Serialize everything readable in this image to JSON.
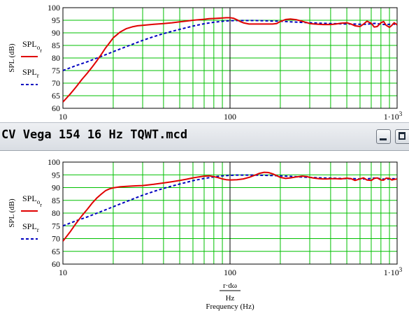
{
  "window": {
    "title": "CV Vega 154 16 Hz TQWT.mcd"
  },
  "colors": {
    "grid": "#00c000",
    "axes": "#000000",
    "series_solid": "#e00000",
    "series_dashed": "#0000c0"
  },
  "x_axis_label": {
    "numerator": "r·dω",
    "denominator": "Hz",
    "caption": "Frequency (Hz)"
  },
  "chart_data": [
    {
      "type": "line",
      "x_scale": "log",
      "xlim": [
        10,
        1000
      ],
      "ylim": [
        60,
        100
      ],
      "grid": true,
      "ylabel": "SPL (dB)",
      "x_ticks": [
        {
          "value": 10,
          "label": "10"
        },
        {
          "value": 100,
          "label": "100"
        },
        {
          "value": 1000,
          "label": "1·10",
          "exponent": "3"
        }
      ],
      "y_ticks": [
        "60",
        "65",
        "70",
        "75",
        "80",
        "85",
        "90",
        "95",
        "100"
      ],
      "legend": [
        {
          "base": "SPL",
          "sub": "o",
          "subsub": "r",
          "style": "solid"
        },
        {
          "base": "SPL",
          "sub": "r",
          "subsub": "",
          "style": "dashed"
        }
      ],
      "series": [
        {
          "style": "solid",
          "x": [
            10,
            11,
            12,
            13,
            14,
            15,
            16,
            17,
            18,
            19,
            20,
            22,
            24,
            26,
            28,
            30,
            35,
            40,
            45,
            50,
            55,
            60,
            65,
            70,
            75,
            80,
            85,
            90,
            95,
            100,
            105,
            110,
            115,
            120,
            130,
            140,
            150,
            160,
            170,
            180,
            190,
            200,
            215,
            230,
            250,
            270,
            290,
            300,
            320,
            340,
            360,
            380,
            400,
            430,
            460,
            500,
            530,
            560,
            600,
            630,
            660,
            700,
            730,
            760,
            800,
            830,
            860,
            900,
            930,
            960,
            1000
          ],
          "y": [
            62.5,
            65.5,
            68.5,
            71.5,
            74,
            76.5,
            79,
            81.5,
            84,
            86,
            88,
            90.3,
            91.7,
            92.4,
            92.8,
            93,
            93.4,
            93.7,
            94,
            94.4,
            94.7,
            95,
            95.2,
            95.4,
            95.6,
            95.7,
            95.8,
            95.9,
            96,
            96,
            95.8,
            95.2,
            94.5,
            94,
            93.5,
            93.5,
            93.5,
            93.5,
            93.5,
            93.5,
            93.7,
            94.5,
            95.3,
            95.5,
            95.2,
            94.6,
            94,
            93.7,
            93.5,
            93.4,
            93.3,
            93.3,
            93.3,
            93.5,
            93.8,
            94,
            93.5,
            92.8,
            92.5,
            93.5,
            94.6,
            93.8,
            92.3,
            92.5,
            94,
            94.5,
            93,
            92.2,
            93,
            94,
            93.2
          ]
        },
        {
          "style": "dashed",
          "x": [
            10,
            12,
            14,
            16,
            18,
            20,
            25,
            30,
            35,
            40,
            45,
            50,
            60,
            70,
            80,
            90,
            100,
            110,
            120,
            140,
            160,
            180,
            200,
            230,
            260,
            300,
            350,
            400,
            450,
            500,
            550,
            600,
            650,
            700,
            750,
            800,
            850,
            900,
            950,
            1000
          ],
          "y": [
            75,
            77,
            78.5,
            80,
            81.3,
            82.5,
            85,
            87,
            88.5,
            89.7,
            90.6,
            91.4,
            92.7,
            93.6,
            94.2,
            94.6,
            94.8,
            94.9,
            94.9,
            94.9,
            94.8,
            94.7,
            94.6,
            94.4,
            94.2,
            94,
            93.8,
            93.7,
            93.6,
            93.5,
            93.5,
            93.4,
            93.4,
            93.6,
            93.8,
            93.4,
            93.3,
            93.4,
            93.5,
            93.3
          ]
        }
      ]
    },
    {
      "type": "line",
      "x_scale": "log",
      "xlim": [
        10,
        1000
      ],
      "ylim": [
        60,
        100
      ],
      "grid": true,
      "ylabel": "SPL (dB)",
      "x_ticks": [
        {
          "value": 10,
          "label": "10"
        },
        {
          "value": 100,
          "label": "100"
        },
        {
          "value": 1000,
          "label": "1·10",
          "exponent": "3"
        }
      ],
      "y_ticks": [
        "60",
        "65",
        "70",
        "75",
        "80",
        "85",
        "90",
        "95",
        "100"
      ],
      "legend": [
        {
          "base": "SPL",
          "sub": "o",
          "subsub": "r",
          "style": "solid"
        },
        {
          "base": "SPL",
          "sub": "r",
          "subsub": "",
          "style": "dashed"
        }
      ],
      "series": [
        {
          "style": "solid",
          "x": [
            10,
            11,
            12,
            13,
            14,
            15,
            16,
            17,
            18,
            19,
            20,
            22,
            24,
            26,
            28,
            30,
            35,
            40,
            45,
            50,
            55,
            60,
            65,
            70,
            75,
            80,
            85,
            90,
            95,
            100,
            110,
            120,
            130,
            140,
            150,
            160,
            170,
            180,
            190,
            200,
            215,
            230,
            250,
            270,
            290,
            300,
            320,
            340,
            360,
            380,
            400,
            430,
            460,
            500,
            530,
            560,
            600,
            630,
            660,
            700,
            730,
            760,
            800,
            830,
            860,
            900,
            930,
            960,
            1000
          ],
          "y": [
            69,
            72.5,
            76,
            79,
            81.5,
            84,
            86,
            87.5,
            88.8,
            89.5,
            89.9,
            90.3,
            90.5,
            90.6,
            90.7,
            90.8,
            91.3,
            91.8,
            92.3,
            92.8,
            93.3,
            93.8,
            94.2,
            94.5,
            94.6,
            94.3,
            93.9,
            93.4,
            93.1,
            93,
            93.1,
            93.4,
            94,
            94.8,
            95.6,
            96,
            95.9,
            95.4,
            94.7,
            94,
            93.6,
            93.8,
            94.2,
            94.5,
            94.3,
            94,
            93.7,
            93.5,
            93.4,
            93.4,
            93.5,
            93.5,
            93.4,
            93.7,
            93.5,
            92.8,
            93.4,
            93.8,
            93,
            92.8,
            93.6,
            93.8,
            93,
            92.9,
            93.7,
            93.6,
            93,
            93.2,
            93.4
          ]
        },
        {
          "style": "dashed",
          "x": [
            10,
            12,
            14,
            16,
            18,
            20,
            25,
            30,
            35,
            40,
            45,
            50,
            60,
            70,
            80,
            90,
            100,
            110,
            120,
            140,
            160,
            180,
            200,
            230,
            260,
            300,
            350,
            400,
            450,
            500,
            550,
            600,
            650,
            700,
            750,
            800,
            850,
            900,
            950,
            1000
          ],
          "y": [
            75,
            77,
            78.5,
            80,
            81.3,
            82.5,
            85,
            87,
            88.5,
            89.7,
            90.6,
            91.4,
            92.7,
            93.6,
            94.2,
            94.6,
            94.8,
            94.9,
            94.9,
            94.9,
            94.8,
            94.7,
            94.6,
            94.4,
            94.2,
            94,
            93.8,
            93.7,
            93.6,
            93.5,
            93.5,
            93.4,
            93.4,
            93.6,
            93.8,
            93.4,
            93.3,
            93.4,
            93.5,
            93.3
          ]
        }
      ]
    }
  ]
}
